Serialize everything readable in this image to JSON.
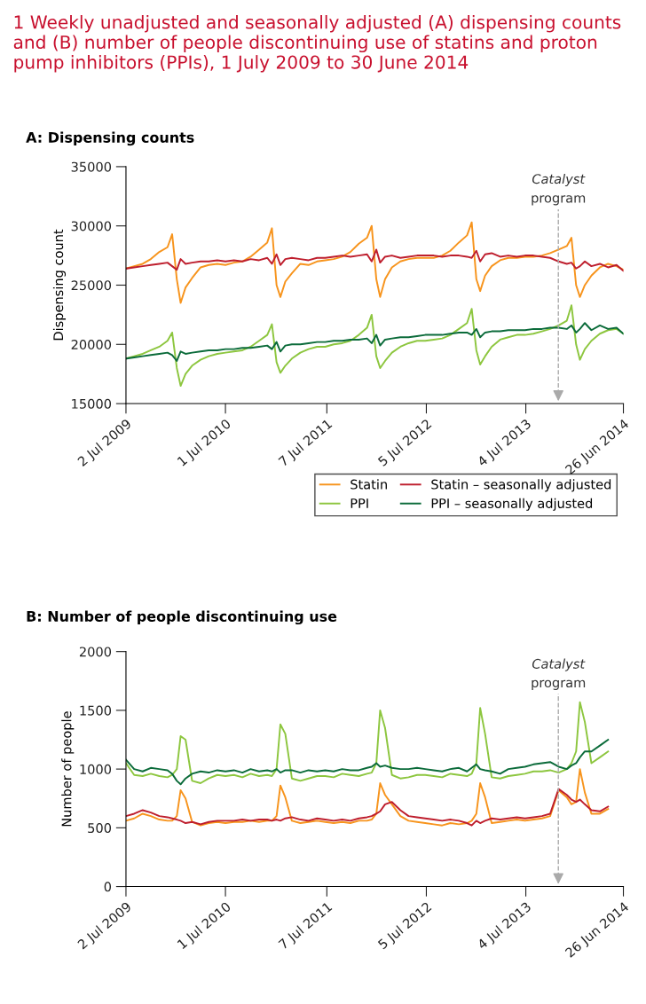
{
  "chart_data": [
    {
      "type": "line",
      "title": "1 Weekly unadjusted and seasonally adjusted (A) dispensing counts and (B) number of people discontinuing use of statins and proton pump inhibitors (PPIs), 1 July 2009 to 30 June 2014",
      "subtitle": "A: Dispensing counts",
      "ylabel": "Dispensing count",
      "x": [
        "2009-07-02",
        "2009-08-01",
        "2009-09-01",
        "2009-10-01",
        "2009-11-01",
        "2009-12-01",
        "2009-12-18",
        "2010-01-04",
        "2010-01-18",
        "2010-02-05",
        "2010-03-01",
        "2010-04-01",
        "2010-05-01",
        "2010-06-01",
        "2010-07-01",
        "2010-08-01",
        "2010-09-01",
        "2010-10-01",
        "2010-11-01",
        "2010-12-01",
        "2010-12-18",
        "2011-01-04",
        "2011-01-18",
        "2011-02-05",
        "2011-03-01",
        "2011-04-01",
        "2011-05-01",
        "2011-06-01",
        "2011-07-01",
        "2011-08-01",
        "2011-09-01",
        "2011-10-01",
        "2011-11-01",
        "2011-12-01",
        "2011-12-18",
        "2012-01-04",
        "2012-01-18",
        "2012-02-05",
        "2012-03-01",
        "2012-04-01",
        "2012-05-01",
        "2012-06-01",
        "2012-07-01",
        "2012-08-01",
        "2012-09-01",
        "2012-10-01",
        "2012-11-01",
        "2012-12-01",
        "2012-12-18",
        "2013-01-04",
        "2013-01-18",
        "2013-02-05",
        "2013-03-01",
        "2013-04-01",
        "2013-05-01",
        "2013-06-01",
        "2013-07-01",
        "2013-08-01",
        "2013-09-01",
        "2013-10-01",
        "2013-11-01",
        "2013-12-01",
        "2013-12-18",
        "2014-01-04",
        "2014-01-18",
        "2014-02-05",
        "2014-03-01",
        "2014-04-01",
        "2014-05-01",
        "2014-06-01",
        "2014-06-26"
      ],
      "series": [
        {
          "name": "Statin",
          "color": "#f7941d",
          "values": [
            26400,
            26600,
            26800,
            27200,
            27800,
            28200,
            29300,
            25500,
            23500,
            24800,
            25600,
            26500,
            26700,
            26800,
            26700,
            26900,
            27000,
            27400,
            28000,
            28600,
            29800,
            25000,
            24000,
            25300,
            26000,
            26800,
            26700,
            27000,
            27100,
            27200,
            27400,
            27800,
            28500,
            29000,
            30000,
            25500,
            24000,
            25500,
            26500,
            27000,
            27200,
            27300,
            27300,
            27300,
            27500,
            27900,
            28600,
            29200,
            30300,
            25500,
            24500,
            25800,
            26600,
            27100,
            27300,
            27300,
            27400,
            27400,
            27500,
            27700,
            28000,
            28300,
            29000,
            25000,
            24000,
            25000,
            25800,
            26500,
            26800,
            26600,
            26300
          ]
        },
        {
          "name": "Statin – seasonally adjusted",
          "color": "#be1e2d",
          "values": [
            26400,
            26500,
            26600,
            26700,
            26800,
            26900,
            26600,
            26300,
            27200,
            26800,
            26900,
            27000,
            27000,
            27100,
            27000,
            27100,
            27000,
            27200,
            27100,
            27300,
            26800,
            27600,
            26700,
            27200,
            27300,
            27200,
            27100,
            27300,
            27300,
            27400,
            27500,
            27400,
            27500,
            27600,
            27000,
            28000,
            26900,
            27400,
            27500,
            27300,
            27400,
            27500,
            27500,
            27500,
            27400,
            27500,
            27500,
            27400,
            27300,
            27900,
            27000,
            27600,
            27700,
            27400,
            27500,
            27400,
            27500,
            27500,
            27400,
            27300,
            27000,
            26800,
            26900,
            26400,
            26600,
            27000,
            26600,
            26800,
            26500,
            26700,
            26200
          ]
        },
        {
          "name": "PPI",
          "color": "#8dc63f",
          "values": [
            18800,
            19000,
            19200,
            19500,
            19800,
            20300,
            21000,
            18000,
            16500,
            17500,
            18200,
            18700,
            19000,
            19200,
            19300,
            19400,
            19500,
            19800,
            20300,
            20800,
            21700,
            18500,
            17600,
            18200,
            18800,
            19300,
            19600,
            19800,
            19800,
            20000,
            20100,
            20300,
            20800,
            21400,
            22500,
            19000,
            18000,
            18600,
            19300,
            19800,
            20100,
            20300,
            20300,
            20400,
            20500,
            20800,
            21300,
            21800,
            23000,
            19500,
            18300,
            19000,
            19800,
            20400,
            20600,
            20800,
            20800,
            20900,
            21100,
            21300,
            21600,
            22000,
            23300,
            20000,
            18700,
            19600,
            20300,
            20900,
            21200,
            21300,
            20900
          ]
        },
        {
          "name": "PPI – seasonally adjusted",
          "color": "#0b6b3a",
          "values": [
            18800,
            18900,
            19000,
            19100,
            19200,
            19300,
            19100,
            18600,
            19400,
            19200,
            19300,
            19400,
            19500,
            19500,
            19600,
            19600,
            19700,
            19700,
            19800,
            19900,
            19600,
            20200,
            19400,
            19900,
            20000,
            20000,
            20100,
            20200,
            20200,
            20300,
            20300,
            20400,
            20400,
            20500,
            20100,
            20800,
            19900,
            20400,
            20500,
            20600,
            20600,
            20700,
            20800,
            20800,
            20800,
            20900,
            21000,
            21000,
            20800,
            21300,
            20600,
            21000,
            21100,
            21100,
            21200,
            21200,
            21200,
            21300,
            21300,
            21400,
            21400,
            21300,
            21600,
            21000,
            21300,
            21800,
            21200,
            21600,
            21300,
            21400,
            20900
          ]
        }
      ],
      "xlim": [
        "2009-07-02",
        "2014-06-26"
      ],
      "xticks": [
        {
          "value": "2009-07-02",
          "label": "2 Jul 2009"
        },
        {
          "value": "2010-07-01",
          "label": "1 Jul 2010"
        },
        {
          "value": "2011-07-07",
          "label": "7 Jul 2011"
        },
        {
          "value": "2012-07-05",
          "label": "5 Jul 2012"
        },
        {
          "value": "2013-07-04",
          "label": "4 Jul 2013"
        },
        {
          "value": "2014-06-26",
          "label": "26 Jun 2014"
        }
      ],
      "ylim": [
        15000,
        35000
      ],
      "yticks": [
        15000,
        20000,
        25000,
        30000,
        35000
      ],
      "ref_lines": [
        {
          "axis": "x",
          "value": "2013-10-31",
          "label": "Catalyst program",
          "color": "#aaaaaa",
          "line_style": "dashed"
        }
      ],
      "grid": false,
      "legend": "bottom",
      "line_style": "solid",
      "marker": "none"
    },
    {
      "type": "line",
      "title": "B: Number of people discontinuing use",
      "ylabel": "Number of people",
      "x": [
        "2009-07-02",
        "2009-08-01",
        "2009-09-01",
        "2009-10-01",
        "2009-11-01",
        "2009-12-01",
        "2009-12-18",
        "2010-01-04",
        "2010-01-18",
        "2010-02-05",
        "2010-03-01",
        "2010-04-01",
        "2010-05-01",
        "2010-06-01",
        "2010-07-01",
        "2010-08-01",
        "2010-09-01",
        "2010-10-01",
        "2010-11-01",
        "2010-12-01",
        "2010-12-18",
        "2011-01-04",
        "2011-01-18",
        "2011-02-05",
        "2011-03-01",
        "2011-04-01",
        "2011-05-01",
        "2011-06-01",
        "2011-07-01",
        "2011-08-01",
        "2011-09-01",
        "2011-10-01",
        "2011-11-01",
        "2011-12-01",
        "2011-12-18",
        "2012-01-04",
        "2012-01-18",
        "2012-02-05",
        "2012-03-01",
        "2012-04-01",
        "2012-05-01",
        "2012-06-01",
        "2012-07-01",
        "2012-08-01",
        "2012-09-01",
        "2012-10-01",
        "2012-11-01",
        "2012-12-01",
        "2012-12-18",
        "2013-01-04",
        "2013-01-18",
        "2013-02-05",
        "2013-03-01",
        "2013-04-01",
        "2013-05-01",
        "2013-06-01",
        "2013-07-01",
        "2013-08-01",
        "2013-09-01",
        "2013-10-01",
        "2013-11-01",
        "2013-12-01",
        "2013-12-18",
        "2014-01-04",
        "2014-01-18",
        "2014-02-05",
        "2014-03-01",
        "2014-04-01",
        "2014-05-01"
      ],
      "series": [
        {
          "color": "#f7941d",
          "values": [
            560,
            580,
            620,
            600,
            570,
            560,
            560,
            600,
            820,
            750,
            550,
            520,
            540,
            550,
            540,
            550,
            550,
            560,
            550,
            560,
            560,
            600,
            860,
            760,
            560,
            540,
            550,
            560,
            550,
            540,
            550,
            540,
            560,
            560,
            570,
            620,
            880,
            780,
            700,
            600,
            560,
            550,
            540,
            530,
            520,
            540,
            530,
            540,
            560,
            620,
            880,
            760,
            540,
            550,
            560,
            570,
            560,
            570,
            580,
            600,
            820,
            760,
            700,
            720,
            1000,
            800,
            620,
            620,
            660
          ]
        },
        {
          "color": "#be1e2d",
          "values": [
            600,
            620,
            650,
            630,
            600,
            590,
            580,
            570,
            560,
            540,
            550,
            530,
            550,
            560,
            560,
            560,
            570,
            560,
            570,
            570,
            560,
            570,
            560,
            580,
            590,
            570,
            560,
            580,
            570,
            560,
            570,
            560,
            580,
            590,
            600,
            620,
            640,
            700,
            720,
            650,
            600,
            590,
            580,
            570,
            560,
            570,
            560,
            540,
            520,
            560,
            540,
            560,
            580,
            570,
            580,
            590,
            580,
            590,
            600,
            620,
            830,
            780,
            740,
            720,
            740,
            700,
            650,
            640,
            680
          ]
        },
        {
          "color": "#8dc63f",
          "values": [
            1050,
            950,
            940,
            960,
            940,
            930,
            950,
            1000,
            1280,
            1250,
            900,
            880,
            920,
            950,
            940,
            950,
            930,
            960,
            940,
            950,
            940,
            1000,
            1380,
            1300,
            920,
            900,
            920,
            940,
            940,
            930,
            960,
            950,
            940,
            960,
            970,
            1050,
            1500,
            1350,
            950,
            920,
            930,
            950,
            950,
            940,
            930,
            960,
            950,
            940,
            960,
            1050,
            1520,
            1300,
            930,
            920,
            940,
            950,
            960,
            980,
            980,
            990,
            970,
            1000,
            1050,
            1150,
            1570,
            1400,
            1050,
            1100,
            1150
          ]
        },
        {
          "color": "#0b6b3a",
          "values": [
            1080,
            1000,
            980,
            1010,
            1000,
            990,
            960,
            900,
            870,
            920,
            960,
            980,
            970,
            990,
            980,
            990,
            970,
            1000,
            980,
            990,
            980,
            1000,
            970,
            990,
            990,
            970,
            990,
            980,
            990,
            980,
            1000,
            990,
            990,
            1010,
            1020,
            1050,
            1020,
            1030,
            1010,
            1000,
            1000,
            1010,
            1000,
            990,
            980,
            1000,
            1010,
            980,
            1010,
            1040,
            1000,
            990,
            980,
            960,
            1000,
            1010,
            1020,
            1040,
            1050,
            1060,
            1020,
            1000,
            1030,
            1050,
            1100,
            1150,
            1150,
            1200,
            1250
          ]
        }
      ],
      "xlim": [
        "2009-07-02",
        "2014-06-26"
      ],
      "xticks": [
        {
          "value": "2009-07-02",
          "label": "2 Jul 2009"
        },
        {
          "value": "2010-07-01",
          "label": "1 Jul 2010"
        },
        {
          "value": "2011-07-07",
          "label": "7 Jul 2011"
        },
        {
          "value": "2012-07-05",
          "label": "5 Jul 2012"
        },
        {
          "value": "2013-07-04",
          "label": "4 Jul 2013"
        },
        {
          "value": "2014-06-26",
          "label": "26 Jun 2014"
        }
      ],
      "ylim": [
        0,
        2000
      ],
      "yticks": [
        0,
        500,
        1000,
        1500,
        2000
      ],
      "ref_lines": [
        {
          "axis": "x",
          "value": "2013-10-31",
          "label": "Catalyst program",
          "color": "#aaaaaa",
          "line_style": "dashed"
        }
      ],
      "grid": false,
      "legend": false,
      "line_style": "solid",
      "marker": "none"
    }
  ]
}
